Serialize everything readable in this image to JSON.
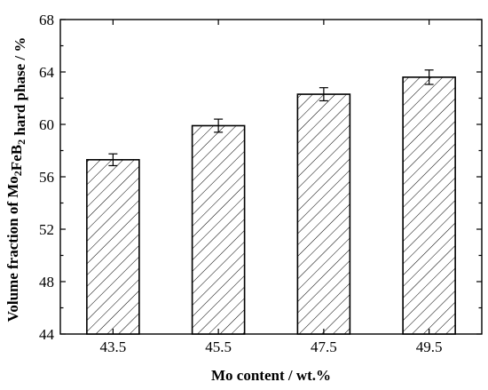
{
  "chart_data": {
    "type": "bar",
    "categories": [
      "43.5",
      "45.5",
      "47.5",
      "49.5"
    ],
    "values": [
      57.3,
      59.9,
      62.3,
      63.6
    ],
    "errors": [
      0.45,
      0.5,
      0.5,
      0.55
    ],
    "xlabel": "Mo content / wt.%",
    "ylabel": {
      "parts": [
        {
          "text": "Volume fraction of Mo"
        },
        {
          "text": "2",
          "sub": true
        },
        {
          "text": "FeB"
        },
        {
          "text": "2",
          "sub": true
        },
        {
          "text": " hard phase / %"
        }
      ]
    },
    "ylim": [
      44,
      68
    ],
    "yticks": [
      "44",
      "48",
      "52",
      "56",
      "60",
      "64",
      "68"
    ],
    "grid": false,
    "bar_fill": "diagonal-hatch",
    "bar_color": "#000000"
  }
}
